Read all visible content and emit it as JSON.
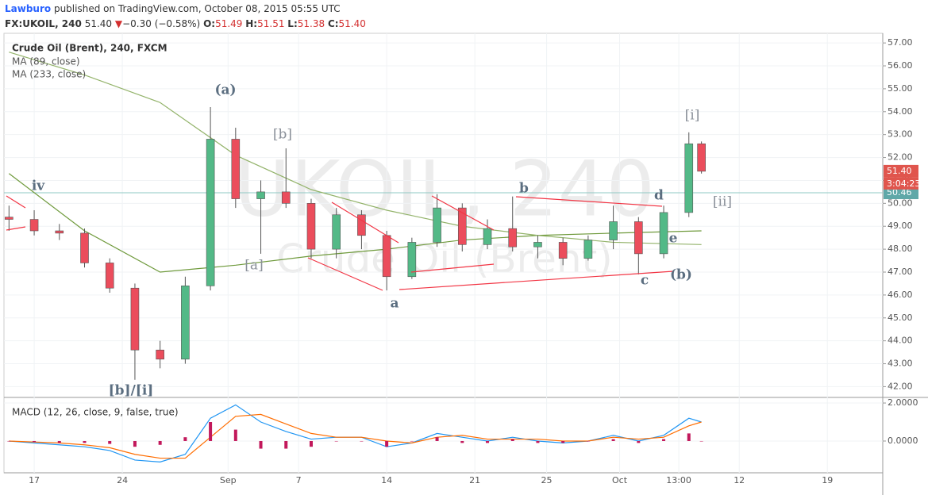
{
  "header": {
    "author": "Lawburo",
    "published": "published on TradingView.com, October 08, 2015 05:55 UTC",
    "symbol": "FX:UKOIL, 240",
    "last": "51.40",
    "arrow": "▼",
    "change": "−0.30 (−0.58%)",
    "o_label": "O:",
    "o": "51.49",
    "h_label": "H:",
    "h": "51.51",
    "l_label": "L:",
    "l": "51.38",
    "c_label": "C:",
    "c": "51.40"
  },
  "chart_data": [
    {
      "type": "candlestick",
      "title": "Crude Oil (Brent), 240, FXCM",
      "watermark": [
        "UKOIL, 240",
        "Crude Oil (Brent)"
      ],
      "x": [
        -2,
        0,
        2,
        4,
        6,
        8,
        10,
        12,
        14,
        16,
        18,
        20,
        22,
        24,
        26,
        28,
        30,
        32,
        34,
        36,
        38,
        40,
        42,
        44,
        46,
        48,
        50,
        52,
        53
      ],
      "open": [
        49.4,
        49.3,
        48.8,
        48.7,
        47.4,
        46.3,
        43.6,
        43.2,
        46.4,
        52.8,
        50.2,
        50.5,
        50.0,
        48.0,
        49.5,
        48.6,
        46.8,
        48.3,
        49.8,
        48.2,
        48.9,
        48.1,
        48.3,
        47.6,
        48.4,
        49.2,
        47.8,
        49.6,
        52.6
      ],
      "high": [
        49.9,
        49.7,
        49.1,
        48.9,
        47.6,
        46.5,
        44.0,
        46.8,
        54.2,
        53.3,
        51.0,
        52.4,
        50.2,
        49.8,
        49.7,
        48.8,
        48.5,
        50.4,
        50.0,
        49.3,
        50.3,
        48.6,
        48.5,
        48.6,
        49.9,
        49.4,
        49.9,
        53.1,
        52.7
      ],
      "low": [
        48.8,
        48.6,
        48.4,
        47.2,
        46.1,
        42.3,
        42.8,
        43.0,
        46.2,
        49.8,
        47.8,
        49.8,
        47.6,
        47.6,
        48.0,
        46.2,
        46.7,
        48.1,
        47.9,
        48.0,
        47.9,
        47.6,
        47.3,
        47.5,
        48.0,
        46.9,
        47.6,
        49.4,
        51.3
      ],
      "close": [
        49.3,
        48.8,
        48.7,
        47.4,
        46.3,
        43.6,
        43.2,
        46.4,
        52.8,
        50.2,
        50.5,
        50.0,
        48.0,
        49.5,
        48.6,
        46.8,
        48.3,
        49.8,
        48.2,
        48.9,
        48.1,
        48.3,
        47.6,
        48.4,
        49.2,
        47.8,
        49.6,
        52.6,
        51.4
      ],
      "up_color": "#53b987",
      "down_color": "#eb4d5c",
      "overlays": [
        {
          "name": "MA (89, close)",
          "color": "#6f9a3c",
          "x": [
            -2,
            4,
            10,
            16,
            22,
            28,
            34,
            40,
            46,
            53
          ],
          "values": [
            51.3,
            48.8,
            47.0,
            47.3,
            47.7,
            48.0,
            48.4,
            48.6,
            48.7,
            48.8
          ]
        },
        {
          "name": "MA (233, close)",
          "color": "#93b36a",
          "x": [
            -2,
            4,
            10,
            16,
            22,
            28,
            34,
            40,
            46,
            53
          ],
          "values": [
            56.6,
            55.6,
            54.4,
            52.1,
            50.6,
            49.7,
            49.0,
            48.6,
            48.3,
            48.2
          ]
        }
      ],
      "price_line": {
        "value": 50.46,
        "label": "50.46"
      },
      "last_tag": "51.40",
      "countdown": "3:04:23",
      "annotations": [
        "(a)",
        "[b]",
        "[a]",
        "iv",
        "[b]/[i]",
        "a",
        "b",
        "c",
        "d",
        "e",
        "(b)",
        "[i]",
        "[ii]"
      ],
      "xlim": [
        -2.4,
        67.4
      ],
      "xticks": [
        {
          "value": 0,
          "label": "17"
        },
        {
          "value": 7,
          "label": "24"
        },
        {
          "value": 15.4,
          "label": "Sep"
        },
        {
          "value": 21,
          "label": "7"
        },
        {
          "value": 28,
          "label": "14"
        },
        {
          "value": 35,
          "label": "21"
        },
        {
          "value": 40.7,
          "label": "25"
        },
        {
          "value": 46.5,
          "label": "Oct"
        },
        {
          "value": 51.2,
          "label": "13:00"
        },
        {
          "value": 56,
          "label": "12"
        },
        {
          "value": 63,
          "label": "19"
        }
      ],
      "ylim": [
        41.53,
        57.42
      ],
      "yticks": [
        {
          "value": 42,
          "label": "42.00"
        },
        {
          "value": 43,
          "label": "43.00"
        },
        {
          "value": 44,
          "label": "44.00"
        },
        {
          "value": 45,
          "label": "45.00"
        },
        {
          "value": 46,
          "label": "46.00"
        },
        {
          "value": 47,
          "label": "47.00"
        },
        {
          "value": 48,
          "label": "48.00"
        },
        {
          "value": 49,
          "label": "49.00"
        },
        {
          "value": 50,
          "label": "50.00"
        },
        {
          "value": 51,
          "label": "51.00"
        },
        {
          "value": 52,
          "label": "52.00"
        },
        {
          "value": 53,
          "label": "53.00"
        },
        {
          "value": 54,
          "label": "54.00"
        },
        {
          "value": 55,
          "label": "55.00"
        },
        {
          "value": 56,
          "label": "56.00"
        },
        {
          "value": 57,
          "label": "57.00"
        }
      ],
      "grid": true
    },
    {
      "type": "macd",
      "title": "MACD (12, 26, close, 9, false, true)",
      "x": [
        -2,
        0,
        2,
        4,
        6,
        8,
        10,
        12,
        14,
        16,
        18,
        20,
        22,
        24,
        26,
        28,
        30,
        32,
        34,
        36,
        38,
        40,
        42,
        44,
        46,
        48,
        50,
        52,
        53
      ],
      "series": [
        {
          "name": "MACD",
          "color": "#2196f3",
          "values": [
            0.0,
            -0.1,
            -0.2,
            -0.3,
            -0.5,
            -1.0,
            -1.1,
            -0.7,
            1.2,
            1.9,
            1.0,
            0.5,
            0.1,
            0.2,
            0.2,
            -0.3,
            -0.1,
            0.4,
            0.2,
            0.0,
            0.2,
            0.0,
            -0.1,
            0.0,
            0.3,
            0.0,
            0.3,
            1.2,
            1.0
          ]
        },
        {
          "name": "Signal",
          "color": "#ff6d00",
          "values": [
            0.0,
            -0.05,
            -0.1,
            -0.2,
            -0.35,
            -0.7,
            -0.9,
            -0.9,
            0.2,
            1.3,
            1.4,
            0.9,
            0.4,
            0.2,
            0.2,
            0.0,
            -0.1,
            0.2,
            0.3,
            0.1,
            0.1,
            0.1,
            0.0,
            0.0,
            0.2,
            0.1,
            0.2,
            0.8,
            1.0
          ]
        },
        {
          "name": "Histogram",
          "color": "#c2185b",
          "values": [
            0.0,
            -0.05,
            -0.1,
            -0.1,
            -0.15,
            -0.3,
            -0.2,
            0.2,
            1.0,
            0.6,
            -0.4,
            -0.4,
            -0.3,
            0.0,
            0.0,
            -0.3,
            0.0,
            0.2,
            -0.1,
            -0.1,
            0.1,
            -0.1,
            -0.1,
            0.0,
            0.1,
            -0.1,
            0.1,
            0.4,
            0.0
          ]
        }
      ],
      "ylim": [
        -1.67,
        2.21
      ],
      "yticks": [
        {
          "value": 2,
          "label": "2.0000"
        },
        {
          "value": 0,
          "label": "0.0000"
        }
      ],
      "grid": true
    }
  ]
}
